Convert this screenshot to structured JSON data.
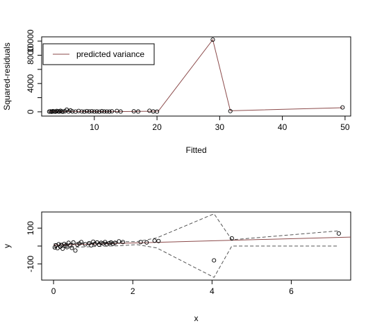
{
  "chart_data": [
    {
      "type": "line",
      "xlabel": "Fitted",
      "ylabel": "Squared-residuals",
      "xlim": [
        1.6,
        50.9
      ],
      "ylim": [
        -600,
        10600
      ],
      "xticks": [
        10,
        20,
        30,
        40,
        50
      ],
      "yticks": [
        0,
        2000,
        4000,
        6000,
        8000,
        10000
      ],
      "ytick_labels": [
        "0",
        "",
        "4000",
        "",
        "8000",
        ""
      ],
      "ytick_labels_rotated": [
        "0",
        "4000",
        "8000",
        "10000"
      ],
      "legend": {
        "position": "top-left",
        "entries": [
          {
            "label": "predicted variance",
            "color": "#8b4a4a"
          }
        ]
      },
      "points": [
        [
          2.8,
          30
        ],
        [
          3.0,
          60
        ],
        [
          3.2,
          10
        ],
        [
          3.4,
          90
        ],
        [
          3.6,
          40
        ],
        [
          3.8,
          20
        ],
        [
          4.0,
          120
        ],
        [
          4.2,
          70
        ],
        [
          4.4,
          30
        ],
        [
          4.6,
          150
        ],
        [
          4.8,
          60
        ],
        [
          5.0,
          20
        ],
        [
          5.3,
          80
        ],
        [
          5.6,
          300
        ],
        [
          5.9,
          40
        ],
        [
          6.2,
          200
        ],
        [
          6.5,
          60
        ],
        [
          7.0,
          30
        ],
        [
          7.5,
          120
        ],
        [
          8.0,
          50
        ],
        [
          8.4,
          20
        ],
        [
          8.8,
          100
        ],
        [
          9.2,
          40
        ],
        [
          9.6,
          80
        ],
        [
          10.0,
          30
        ],
        [
          10.4,
          60
        ],
        [
          10.8,
          20
        ],
        [
          11.2,
          90
        ],
        [
          11.6,
          40
        ],
        [
          12.0,
          50
        ],
        [
          12.4,
          30
        ],
        [
          12.8,
          70
        ],
        [
          13.6,
          120
        ],
        [
          14.2,
          40
        ],
        [
          16.3,
          70
        ],
        [
          17.0,
          40
        ],
        [
          18.8,
          150
        ],
        [
          19.4,
          60
        ],
        [
          20.0,
          30
        ],
        [
          28.9,
          10200
        ],
        [
          31.7,
          100
        ],
        [
          49.6,
          620
        ]
      ],
      "series": [
        {
          "name": "predicted variance",
          "x": [
            2.8,
            5,
            8,
            11,
            13,
            15,
            17,
            19,
            20.2,
            28.9,
            31.7,
            49.6
          ],
          "y": [
            60,
            40,
            50,
            40,
            50,
            40,
            60,
            80,
            90,
            10200,
            150,
            580
          ]
        }
      ]
    },
    {
      "type": "scatter",
      "xlabel": "x",
      "ylabel": "y",
      "xlim": [
        -0.3,
        7.5
      ],
      "ylim": [
        -190,
        190
      ],
      "xticks": [
        0,
        2,
        4,
        6
      ],
      "yticks": [
        -100,
        100
      ],
      "points": [
        [
          0.03,
          -8
        ],
        [
          0.06,
          4
        ],
        [
          0.1,
          -12
        ],
        [
          0.13,
          10
        ],
        [
          0.17,
          -3
        ],
        [
          0.2,
          6
        ],
        [
          0.23,
          -15
        ],
        [
          0.27,
          12
        ],
        [
          0.3,
          2
        ],
        [
          0.34,
          -6
        ],
        [
          0.38,
          18
        ],
        [
          0.42,
          5
        ],
        [
          0.46,
          -10
        ],
        [
          0.5,
          20
        ],
        [
          0.55,
          -25
        ],
        [
          0.6,
          8
        ],
        [
          0.65,
          14
        ],
        [
          0.7,
          22
        ],
        [
          0.8,
          10
        ],
        [
          0.9,
          16
        ],
        [
          0.95,
          4
        ],
        [
          1.0,
          24
        ],
        [
          1.05,
          12
        ],
        [
          1.1,
          20
        ],
        [
          1.15,
          8
        ],
        [
          1.2,
          18
        ],
        [
          1.25,
          14
        ],
        [
          1.3,
          22
        ],
        [
          1.35,
          10
        ],
        [
          1.4,
          16
        ],
        [
          1.45,
          20
        ],
        [
          1.5,
          12
        ],
        [
          1.55,
          18
        ],
        [
          1.65,
          26
        ],
        [
          1.75,
          22
        ],
        [
          2.2,
          22
        ],
        [
          2.35,
          20
        ],
        [
          2.55,
          30
        ],
        [
          2.65,
          28
        ],
        [
          4.05,
          -80
        ],
        [
          4.5,
          43
        ],
        [
          7.2,
          70
        ]
      ],
      "series": [
        {
          "name": "fit",
          "style": "solid",
          "color": "#8b4a4a",
          "x": [
            0,
            7.5
          ],
          "y": [
            5,
            50
          ]
        },
        {
          "name": "upper",
          "style": "dashed",
          "color": "#555555",
          "x": [
            0,
            1.7,
            2.1,
            2.6,
            4.05,
            4.5,
            7.2
          ],
          "y": [
            12,
            24,
            25,
            45,
            180,
            35,
            85
          ]
        },
        {
          "name": "lower",
          "style": "dashed",
          "color": "#555555",
          "x": [
            0,
            1.7,
            2.1,
            2.6,
            4.05,
            4.5,
            7.2
          ],
          "y": [
            -10,
            2,
            8,
            -10,
            -175,
            0,
            0
          ]
        }
      ]
    }
  ]
}
